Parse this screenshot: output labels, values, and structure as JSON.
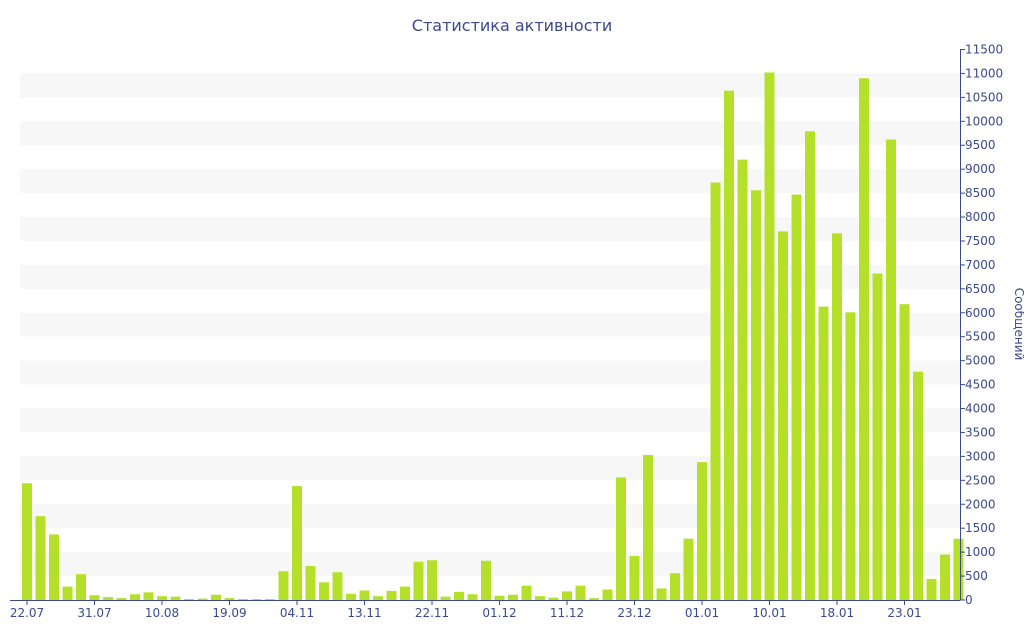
{
  "chart_data": {
    "type": "bar",
    "title": "Статистика активности",
    "xlabel": "",
    "ylabel": "Сообщений",
    "ylim": [
      0,
      11500
    ],
    "y_axis_side": "right",
    "y_ticks": [
      0,
      500,
      1000,
      1500,
      2000,
      2500,
      3000,
      3500,
      4000,
      4500,
      5000,
      5500,
      6000,
      6500,
      7000,
      7500,
      8000,
      8500,
      9000,
      9500,
      10000,
      10500,
      11000,
      11500
    ],
    "x_tick_labels": [
      {
        "index": 0,
        "label": "22.07"
      },
      {
        "index": 5,
        "label": "31.07"
      },
      {
        "index": 10,
        "label": "10.08"
      },
      {
        "index": 15,
        "label": "19.09"
      },
      {
        "index": 20,
        "label": "04.11"
      },
      {
        "index": 25,
        "label": "13.11"
      },
      {
        "index": 30,
        "label": "22.11"
      },
      {
        "index": 35,
        "label": "01.12"
      },
      {
        "index": 40,
        "label": "11.12"
      },
      {
        "index": 45,
        "label": "23.12"
      },
      {
        "index": 50,
        "label": "01.01"
      },
      {
        "index": 55,
        "label": "10.01"
      },
      {
        "index": 60,
        "label": "18.01"
      },
      {
        "index": 65,
        "label": "23.01"
      }
    ],
    "grid": "horizontal alternating bands",
    "colors": {
      "bar": "#b5e02a",
      "band": "#f7f7f7",
      "text": "#3b4a8c",
      "axis": "#3b4a8c"
    },
    "values": [
      2440,
      1750,
      1370,
      280,
      540,
      100,
      60,
      40,
      120,
      160,
      80,
      70,
      20,
      30,
      110,
      40,
      20,
      20,
      20,
      600,
      2380,
      710,
      370,
      580,
      130,
      200,
      80,
      190,
      280,
      800,
      830,
      70,
      170,
      120,
      820,
      90,
      110,
      300,
      80,
      50,
      180,
      300,
      40,
      220,
      2560,
      920,
      3030,
      240,
      560,
      1280,
      2880,
      8720,
      10640,
      9200,
      8560,
      11020,
      7700,
      8470,
      9790,
      6130,
      7660,
      6010,
      10900,
      6820,
      9620,
      6180,
      4770,
      440,
      950,
      1280
    ]
  }
}
